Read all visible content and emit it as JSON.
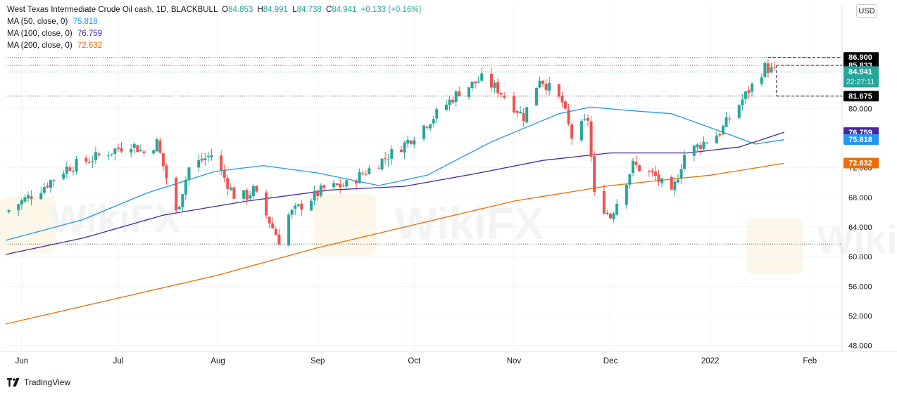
{
  "header": {
    "title": "West Texas Intermediate Crude Oil cash, 1D, BLACKBULL",
    "ohlc": [
      {
        "k": "O",
        "v": "84.853"
      },
      {
        "k": "H",
        "v": "84.991"
      },
      {
        "k": "L",
        "v": "84.738"
      },
      {
        "k": "C",
        "v": "84.941"
      }
    ],
    "change": "+0.133 (+0.16%)",
    "currency": "USD"
  },
  "indicators": [
    {
      "label": "MA (50, close, 0)",
      "value": "75.818",
      "color": "#2196f3"
    },
    {
      "label": "MA (100, close, 0)",
      "value": "76.759",
      "color": "#4527a0"
    },
    {
      "label": "MA (200, close, 0)",
      "value": "72.632",
      "color": "#ef6c00"
    }
  ],
  "price_badges": [
    {
      "text": "86.900",
      "price": 86.9,
      "bg": "#000000",
      "fg": "#ffffff"
    },
    {
      "text": "85.833",
      "price": 85.833,
      "bg": "#000000",
      "fg": "#ffffff"
    },
    {
      "text": "84.941",
      "sub": "22:27:11",
      "price": 84.941,
      "bg": "#26a69a",
      "fg": "#ffffff"
    },
    {
      "text": "81.675",
      "price": 81.675,
      "bg": "#000000",
      "fg": "#ffffff"
    },
    {
      "text": "76.759",
      "price": 76.759,
      "bg": "#4527a0",
      "fg": "#ffffff"
    },
    {
      "text": "75.818",
      "price": 75.818,
      "bg": "#2196f3",
      "fg": "#ffffff"
    },
    {
      "text": "72.632",
      "price": 72.632,
      "bg": "#ef6c00",
      "fg": "#ffffff"
    }
  ],
  "footer": {
    "brand": "TradingView"
  },
  "watermark": "WikiFX",
  "chart_data": {
    "type": "candlestick",
    "title": "West Texas Intermediate Crude Oil cash, 1D, BLACKBULL",
    "y_ticks": [
      48,
      52,
      56,
      60,
      64,
      68,
      72,
      76,
      80
    ],
    "y_tick_labels": [
      "48.000",
      "52.000",
      "56.000",
      "60.000",
      "64.000",
      "68.000",
      "72.000",
      "76.000",
      "80.000"
    ],
    "ylim": [
      47.2,
      92.0
    ],
    "x_ticks": [
      "Jun",
      "Jul",
      "Aug",
      "Sep",
      "Oct",
      "Nov",
      "Dec",
      "2022",
      "Feb"
    ],
    "x_range": [
      "2021-05-27",
      "2022-02-11"
    ],
    "grid": true,
    "up_color": "#26a69a",
    "down_color": "#ef5350",
    "reference_lines": [
      86.9,
      85.833,
      84.941,
      81.675,
      61.7
    ],
    "ohlc_close_path": [
      {
        "date": "2021-05-28",
        "close": 66.3
      },
      {
        "date": "2021-06-07",
        "close": 69.2
      },
      {
        "date": "2021-06-15",
        "close": 72.0
      },
      {
        "date": "2021-06-22",
        "close": 73.1
      },
      {
        "date": "2021-07-05",
        "close": 75.3
      },
      {
        "date": "2021-07-09",
        "close": 74.0
      },
      {
        "date": "2021-07-13",
        "close": 75.4
      },
      {
        "date": "2021-07-19",
        "close": 65.9
      },
      {
        "date": "2021-07-23",
        "close": 72.0
      },
      {
        "date": "2021-07-30",
        "close": 73.8
      },
      {
        "date": "2021-08-06",
        "close": 68.3
      },
      {
        "date": "2021-08-10",
        "close": 68.2
      },
      {
        "date": "2021-08-12",
        "close": 69.0
      },
      {
        "date": "2021-08-20",
        "close": 62.2
      },
      {
        "date": "2021-08-23",
        "close": 65.6
      },
      {
        "date": "2021-09-03",
        "close": 69.2
      },
      {
        "date": "2021-09-10",
        "close": 69.7
      },
      {
        "date": "2021-09-17",
        "close": 71.8
      },
      {
        "date": "2021-09-28",
        "close": 75.2
      },
      {
        "date": "2021-10-08",
        "close": 79.3
      },
      {
        "date": "2021-10-15",
        "close": 82.3
      },
      {
        "date": "2021-10-22",
        "close": 84.0
      },
      {
        "date": "2021-10-27",
        "close": 82.6
      },
      {
        "date": "2021-11-04",
        "close": 78.9
      },
      {
        "date": "2021-11-09",
        "close": 84.2
      },
      {
        "date": "2021-11-16",
        "close": 80.8
      },
      {
        "date": "2021-11-19",
        "close": 76.1
      },
      {
        "date": "2021-11-24",
        "close": 78.6
      },
      {
        "date": "2021-11-26",
        "close": 68.2
      },
      {
        "date": "2021-12-01",
        "close": 65.4
      },
      {
        "date": "2021-12-08",
        "close": 72.4
      },
      {
        "date": "2021-12-15",
        "close": 70.8
      },
      {
        "date": "2021-12-20",
        "close": 68.3
      },
      {
        "date": "2021-12-24",
        "close": 73.8
      },
      {
        "date": "2022-01-04",
        "close": 76.8
      },
      {
        "date": "2022-01-11",
        "close": 81.2
      },
      {
        "date": "2022-01-18",
        "close": 85.6
      },
      {
        "date": "2022-01-21",
        "close": 84.9
      }
    ],
    "series": [
      {
        "name": "MA (50, close, 0)",
        "last": 75.818,
        "points": [
          {
            "date": "2021-05-27",
            "value": 62.2
          },
          {
            "date": "2021-06-20",
            "value": 65.0
          },
          {
            "date": "2021-07-10",
            "value": 68.6
          },
          {
            "date": "2021-07-31",
            "value": 71.5
          },
          {
            "date": "2021-08-15",
            "value": 72.3
          },
          {
            "date": "2021-09-01",
            "value": 71.3
          },
          {
            "date": "2021-09-20",
            "value": 69.6
          },
          {
            "date": "2021-10-05",
            "value": 71.0
          },
          {
            "date": "2021-10-25",
            "value": 75.5
          },
          {
            "date": "2021-11-15",
            "value": 79.3
          },
          {
            "date": "2021-11-25",
            "value": 80.2
          },
          {
            "date": "2021-12-05",
            "value": 79.8
          },
          {
            "date": "2021-12-20",
            "value": 79.3
          },
          {
            "date": "2022-01-05",
            "value": 76.8
          },
          {
            "date": "2022-01-15",
            "value": 75.2
          },
          {
            "date": "2022-01-24",
            "value": 75.8
          }
        ]
      },
      {
        "name": "MA (100, close, 0)",
        "last": 76.759,
        "points": [
          {
            "date": "2021-05-27",
            "value": 60.3
          },
          {
            "date": "2021-06-20",
            "value": 62.5
          },
          {
            "date": "2021-07-15",
            "value": 65.6
          },
          {
            "date": "2021-08-10",
            "value": 67.5
          },
          {
            "date": "2021-09-05",
            "value": 69.0
          },
          {
            "date": "2021-09-28",
            "value": 69.5
          },
          {
            "date": "2021-10-20",
            "value": 71.2
          },
          {
            "date": "2021-11-10",
            "value": 73.0
          },
          {
            "date": "2021-12-01",
            "value": 74.0
          },
          {
            "date": "2021-12-25",
            "value": 74.0
          },
          {
            "date": "2022-01-10",
            "value": 74.8
          },
          {
            "date": "2022-01-24",
            "value": 76.8
          }
        ]
      },
      {
        "name": "MA (200, close, 0)",
        "last": 72.632,
        "points": [
          {
            "date": "2021-05-27",
            "value": 50.9
          },
          {
            "date": "2021-07-01",
            "value": 54.4
          },
          {
            "date": "2021-08-01",
            "value": 57.5
          },
          {
            "date": "2021-09-01",
            "value": 61.2
          },
          {
            "date": "2021-10-01",
            "value": 64.3
          },
          {
            "date": "2021-11-01",
            "value": 67.5
          },
          {
            "date": "2021-12-01",
            "value": 69.6
          },
          {
            "date": "2022-01-01",
            "value": 71.0
          },
          {
            "date": "2022-01-24",
            "value": 72.6
          }
        ]
      }
    ]
  }
}
